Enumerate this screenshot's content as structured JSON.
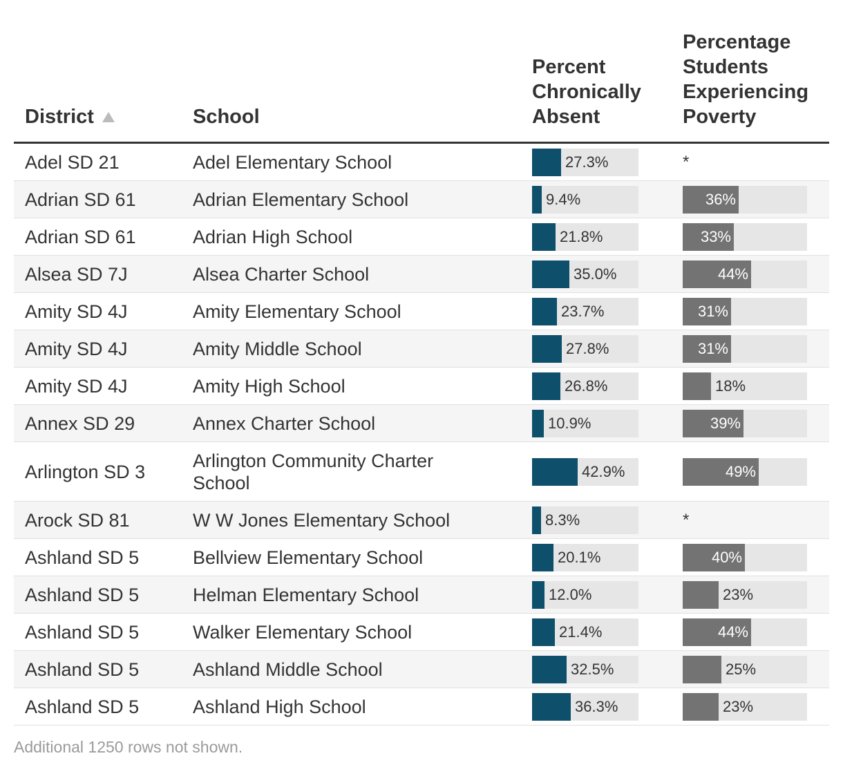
{
  "table": {
    "headers": {
      "district": "District",
      "school": "School",
      "absent": [
        "Percent",
        "Chronically",
        "Absent"
      ],
      "poverty": [
        "Percentage",
        "Students",
        "Experiencing",
        "Poverty"
      ]
    },
    "sort_icon": "sort-ascending-icon",
    "colors": {
      "absent_bar": "#0e4f6b",
      "poverty_bar": "#737373",
      "bar_track": "#e6e6e6"
    },
    "rows": [
      {
        "district": "Adel SD 21",
        "school": "Adel Elementary School",
        "absent": 27.3,
        "absent_label": "27.3%",
        "poverty": null,
        "poverty_label": "*"
      },
      {
        "district": "Adrian SD 61",
        "school": "Adrian Elementary School",
        "absent": 9.4,
        "absent_label": "9.4%",
        "poverty": 36,
        "poverty_label": "36%"
      },
      {
        "district": "Adrian SD 61",
        "school": "Adrian High School",
        "absent": 21.8,
        "absent_label": "21.8%",
        "poverty": 33,
        "poverty_label": "33%"
      },
      {
        "district": "Alsea SD 7J",
        "school": "Alsea Charter School",
        "absent": 35.0,
        "absent_label": "35.0%",
        "poverty": 44,
        "poverty_label": "44%"
      },
      {
        "district": "Amity SD 4J",
        "school": "Amity Elementary School",
        "absent": 23.7,
        "absent_label": "23.7%",
        "poverty": 31,
        "poverty_label": "31%"
      },
      {
        "district": "Amity SD 4J",
        "school": "Amity Middle School",
        "absent": 27.8,
        "absent_label": "27.8%",
        "poverty": 31,
        "poverty_label": "31%"
      },
      {
        "district": "Amity SD 4J",
        "school": "Amity High School",
        "absent": 26.8,
        "absent_label": "26.8%",
        "poverty": 18,
        "poverty_label": "18%"
      },
      {
        "district": "Annex SD 29",
        "school": "Annex Charter School",
        "absent": 10.9,
        "absent_label": "10.9%",
        "poverty": 39,
        "poverty_label": "39%"
      },
      {
        "district": "Arlington SD 3",
        "school": "Arlington Community Charter School",
        "absent": 42.9,
        "absent_label": "42.9%",
        "poverty": 49,
        "poverty_label": "49%"
      },
      {
        "district": "Arock SD 81",
        "school": "W W Jones Elementary School",
        "absent": 8.3,
        "absent_label": "8.3%",
        "poverty": null,
        "poverty_label": "*"
      },
      {
        "district": "Ashland SD 5",
        "school": "Bellview Elementary School",
        "absent": 20.1,
        "absent_label": "20.1%",
        "poverty": 40,
        "poverty_label": "40%"
      },
      {
        "district": "Ashland SD 5",
        "school": "Helman Elementary School",
        "absent": 12.0,
        "absent_label": "12.0%",
        "poverty": 23,
        "poverty_label": "23%"
      },
      {
        "district": "Ashland SD 5",
        "school": "Walker Elementary School",
        "absent": 21.4,
        "absent_label": "21.4%",
        "poverty": 44,
        "poverty_label": "44%"
      },
      {
        "district": "Ashland SD 5",
        "school": "Ashland Middle School",
        "absent": 32.5,
        "absent_label": "32.5%",
        "poverty": 25,
        "poverty_label": "25%"
      },
      {
        "district": "Ashland SD 5",
        "school": "Ashland High School",
        "absent": 36.3,
        "absent_label": "36.3%",
        "poverty": 23,
        "poverty_label": "23%"
      }
    ],
    "footnote": "Additional 1250 rows not shown."
  },
  "chart_data": {
    "type": "table",
    "columns": [
      "District",
      "School",
      "Percent Chronically Absent",
      "Percentage Students Experiencing Poverty"
    ],
    "sorted_by": "District",
    "sort_direction": "ascending",
    "absent_scale_max": 100,
    "poverty_scale_max": 80,
    "rows": [
      [
        "Adel SD 21",
        "Adel Elementary School",
        27.3,
        null
      ],
      [
        "Adrian SD 61",
        "Adrian Elementary School",
        9.4,
        36
      ],
      [
        "Adrian SD 61",
        "Adrian High School",
        21.8,
        33
      ],
      [
        "Alsea SD 7J",
        "Alsea Charter School",
        35.0,
        44
      ],
      [
        "Amity SD 4J",
        "Amity Elementary School",
        23.7,
        31
      ],
      [
        "Amity SD 4J",
        "Amity Middle School",
        27.8,
        31
      ],
      [
        "Amity SD 4J",
        "Amity High School",
        26.8,
        18
      ],
      [
        "Annex SD 29",
        "Annex Charter School",
        10.9,
        39
      ],
      [
        "Arlington SD 3",
        "Arlington Community Charter School",
        42.9,
        49
      ],
      [
        "Arock SD 81",
        "W W Jones Elementary School",
        8.3,
        null
      ],
      [
        "Ashland SD 5",
        "Bellview Elementary School",
        20.1,
        40
      ],
      [
        "Ashland SD 5",
        "Helman Elementary School",
        12.0,
        23
      ],
      [
        "Ashland SD 5",
        "Walker Elementary School",
        21.4,
        44
      ],
      [
        "Ashland SD 5",
        "Ashland Middle School",
        32.5,
        25
      ],
      [
        "Ashland SD 5",
        "Ashland High School",
        36.3,
        23
      ]
    ]
  }
}
